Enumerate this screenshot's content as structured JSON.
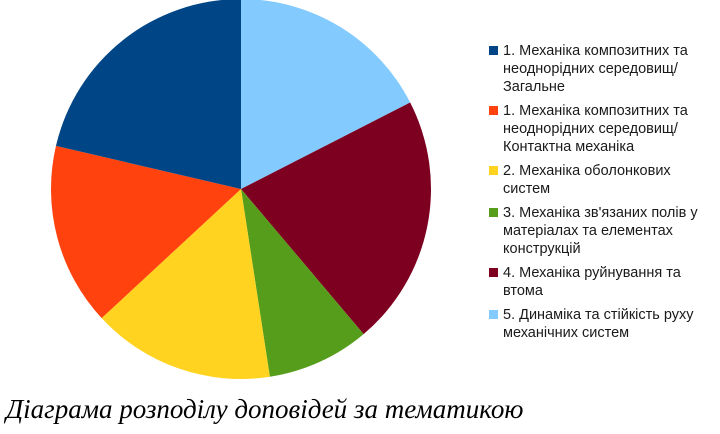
{
  "chart_data": {
    "type": "pie",
    "caption": "Діаграма розподілу доповідей за тематикою",
    "legend_position": "right",
    "slices": [
      {
        "label": "1. Механіка композитних та\nнеоднорідних середовищ/\nЗагальне",
        "value": 22,
        "color": "#004586"
      },
      {
        "label": "1. Механіка композитних та\nнеоднорідних середовищ/\nКонтактна механіка",
        "value": 16,
        "color": "#ff420e"
      },
      {
        "label": "2. Механіка оболонкових\nсистем",
        "value": 16,
        "color": "#ffd320"
      },
      {
        "label": "3. Механіка зв'язаних полів у\nматеріалах та елементах\nконструкцій",
        "value": 9,
        "color": "#579d1c"
      },
      {
        "label": "4. Механіка руйнування та\nвтома",
        "value": 22,
        "color": "#7e0021"
      },
      {
        "label": "5. Динаміка та стійкість руху\nмеханічних систем",
        "value": 18,
        "color": "#83caff"
      }
    ]
  }
}
